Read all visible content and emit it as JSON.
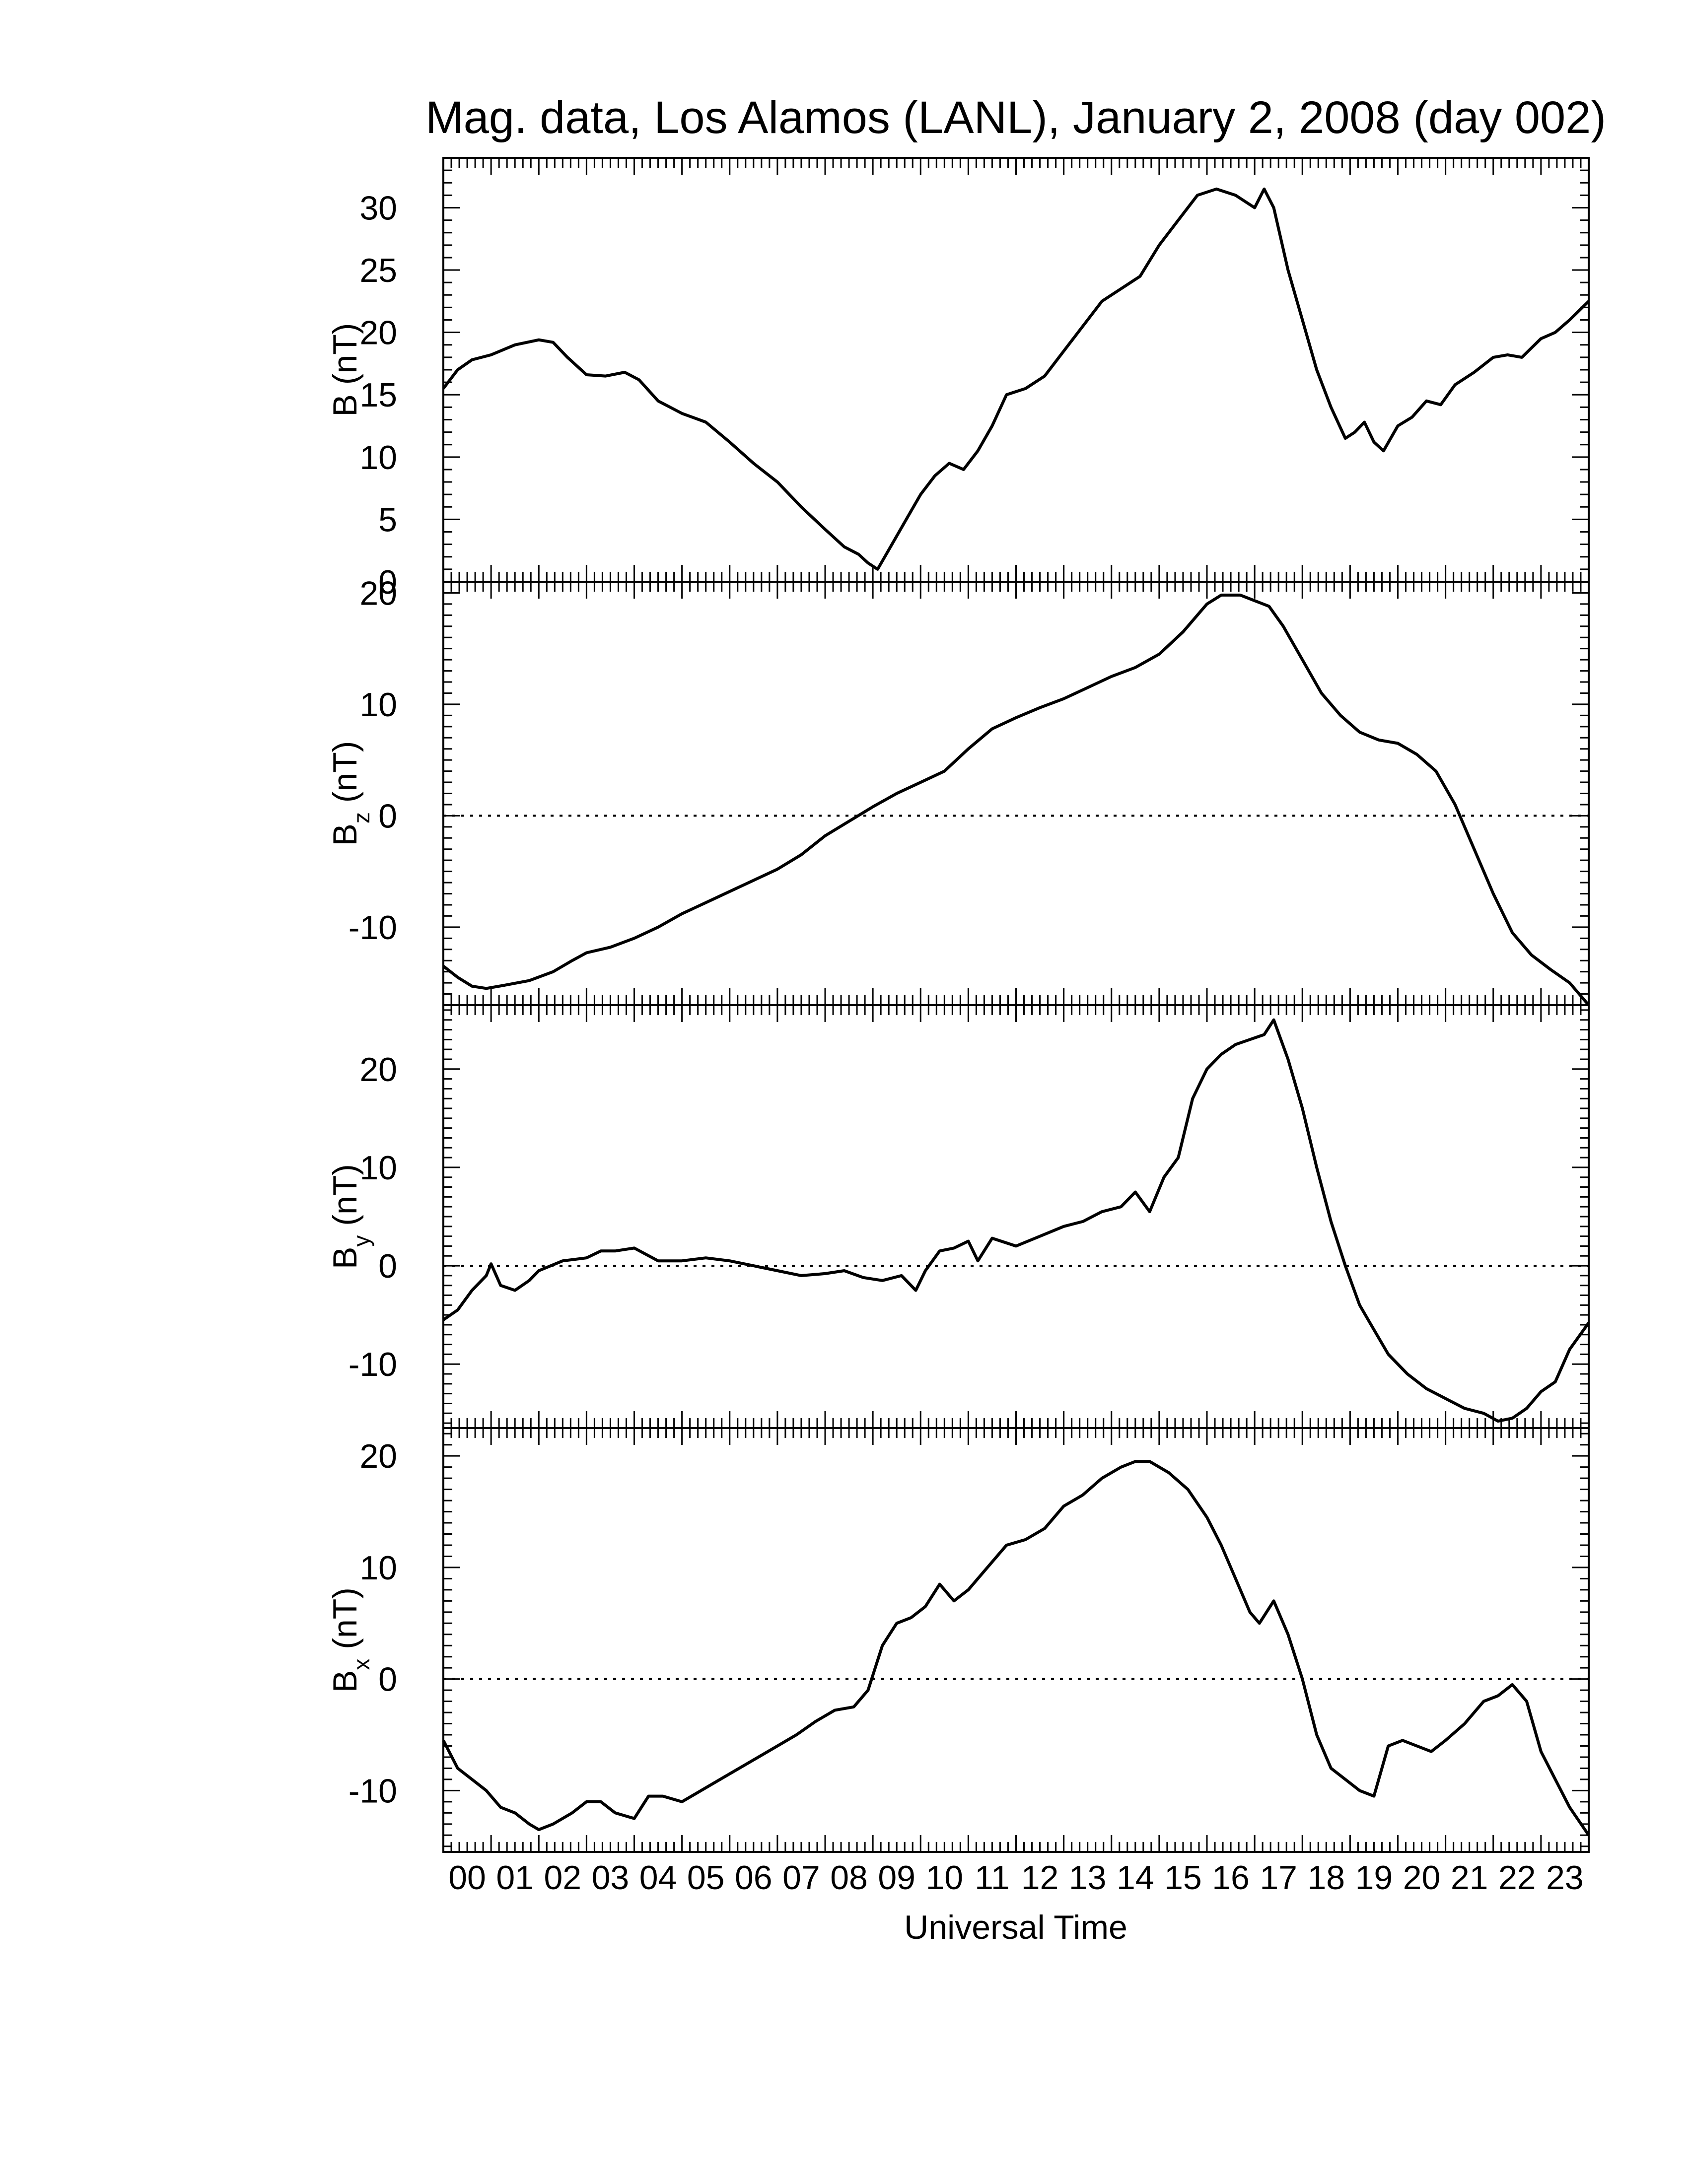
{
  "chart_data": {
    "type": "line",
    "title": "Mag. data, Los Alamos (LANL), January 2, 2008 (day 002)",
    "xlabel": "Universal Time",
    "x_tick_labels": [
      "00",
      "01",
      "02",
      "03",
      "04",
      "05",
      "06",
      "07",
      "08",
      "09",
      "10",
      "11",
      "12",
      "13",
      "14",
      "15",
      "16",
      "17",
      "18",
      "19",
      "20",
      "21",
      "22",
      "23"
    ],
    "xlim": [
      0,
      24
    ],
    "x_unit": "hours UT",
    "panels": [
      {
        "name": "B",
        "ylabel_main": "B",
        "ylabel_sub": "",
        "ylabel_unit": "(nT)",
        "ylim": [
          0,
          34
        ],
        "yticks": [
          0,
          5,
          10,
          15,
          20,
          25,
          30
        ],
        "zero_line": false,
        "series": [
          {
            "x": [
              0,
              0.3,
              0.6,
              1.0,
              1.5,
              2.0,
              2.3,
              2.6,
              3.0,
              3.4,
              3.8,
              4.1,
              4.5,
              5.0,
              5.5,
              6.0,
              6.5,
              7.0,
              7.5,
              8.0,
              8.4,
              8.7,
              8.9,
              9.1,
              9.4,
              9.7,
              10.0,
              10.3,
              10.6,
              10.9,
              11.2,
              11.5,
              11.8,
              12.2,
              12.6,
              13.0,
              13.4,
              13.8,
              14.2,
              14.6,
              15.0,
              15.4,
              15.8,
              16.2,
              16.6,
              17.0,
              17.2,
              17.4,
              17.7,
              18.0,
              18.3,
              18.6,
              18.9,
              19.1,
              19.3,
              19.5,
              19.7,
              20.0,
              20.3,
              20.6,
              20.9,
              21.2,
              21.6,
              22.0,
              22.3,
              22.6,
              23.0,
              23.3,
              23.6,
              24.0
            ],
            "values": [
              15.5,
              17,
              17.8,
              18.2,
              19,
              19.4,
              19.2,
              18,
              16.6,
              16.5,
              16.8,
              16.2,
              14.5,
              13.5,
              12.8,
              11.2,
              9.5,
              8.0,
              6.0,
              4.2,
              2.8,
              2.2,
              1.5,
              1.0,
              3.0,
              5.0,
              7.0,
              8.5,
              9.5,
              9.0,
              10.5,
              12.5,
              15.0,
              15.5,
              16.5,
              18.5,
              20.5,
              22.5,
              23.5,
              24.5,
              27,
              29,
              31,
              31.5,
              31,
              30,
              31.5,
              30,
              25,
              21,
              17,
              14,
              11.5,
              12,
              12.8,
              11.2,
              10.5,
              12.5,
              13.2,
              14.5,
              14.2,
              15.8,
              16.8,
              18,
              18.2,
              18,
              19.5,
              20,
              21,
              22.5
            ]
          }
        ]
      },
      {
        "name": "Bz",
        "ylabel_main": "B",
        "ylabel_sub": "z",
        "ylabel_unit": "(nT)",
        "ylim": [
          -17,
          21
        ],
        "yticks": [
          -10,
          0,
          10,
          20
        ],
        "zero_line": true,
        "series": [
          {
            "x": [
              0,
              0.3,
              0.6,
              0.9,
              1.3,
              1.8,
              2.3,
              2.7,
              3.0,
              3.5,
              4.0,
              4.5,
              5.0,
              5.5,
              6.0,
              6.5,
              7.0,
              7.5,
              8.0,
              8.5,
              9.0,
              9.5,
              10.0,
              10.5,
              11.0,
              11.5,
              12.0,
              12.5,
              13.0,
              13.5,
              14.0,
              14.5,
              15.0,
              15.5,
              16.0,
              16.3,
              16.7,
              17.0,
              17.3,
              17.6,
              18.0,
              18.4,
              18.8,
              19.2,
              19.6,
              20.0,
              20.4,
              20.8,
              21.2,
              21.6,
              22.0,
              22.4,
              22.8,
              23.2,
              23.6,
              24.0
            ],
            "values": [
              -13.5,
              -14.5,
              -15.3,
              -15.5,
              -15.2,
              -14.8,
              -14.0,
              -13.0,
              -12.3,
              -11.8,
              -11.0,
              -10.0,
              -8.8,
              -7.8,
              -6.8,
              -5.8,
              -4.8,
              -3.5,
              -1.8,
              -0.5,
              0.8,
              2.0,
              3.0,
              4.0,
              6.0,
              7.8,
              8.8,
              9.7,
              10.5,
              11.5,
              12.5,
              13.3,
              14.5,
              16.5,
              19.0,
              19.8,
              19.8,
              19.3,
              18.8,
              17.0,
              14.0,
              11.0,
              9.0,
              7.5,
              6.8,
              6.5,
              5.5,
              4.0,
              1.0,
              -3.0,
              -7.0,
              -10.5,
              -12.5,
              -13.8,
              -15.0,
              -17.0
            ]
          }
        ]
      },
      {
        "name": "By",
        "ylabel_main": "B",
        "ylabel_sub": "y",
        "ylabel_unit": "(nT)",
        "ylim": [
          -16.5,
          26.5
        ],
        "yticks": [
          -10,
          0,
          10,
          20
        ],
        "zero_line": true,
        "series": [
          {
            "x": [
              0,
              0.3,
              0.6,
              0.9,
              1.0,
              1.2,
              1.5,
              1.8,
              2.0,
              2.5,
              3.0,
              3.3,
              3.6,
              4.0,
              4.5,
              5.0,
              5.5,
              6.0,
              6.5,
              7.0,
              7.5,
              8.0,
              8.4,
              8.8,
              9.2,
              9.6,
              9.9,
              10.1,
              10.4,
              10.7,
              11.0,
              11.2,
              11.5,
              12.0,
              12.5,
              13.0,
              13.4,
              13.8,
              14.2,
              14.5,
              14.8,
              15.1,
              15.4,
              15.7,
              16.0,
              16.3,
              16.6,
              16.9,
              17.2,
              17.4,
              17.7,
              18.0,
              18.3,
              18.6,
              18.9,
              19.2,
              19.5,
              19.8,
              20.2,
              20.6,
              21.0,
              21.4,
              21.8,
              22.1,
              22.4,
              22.7,
              23.0,
              23.3,
              23.6,
              24.0
            ],
            "values": [
              -5.5,
              -4.5,
              -2.5,
              -1.0,
              0.2,
              -2.0,
              -2.5,
              -1.5,
              -0.5,
              0.5,
              0.8,
              1.5,
              1.5,
              1.8,
              0.5,
              0.5,
              0.8,
              0.5,
              0.0,
              -0.5,
              -1.0,
              -0.8,
              -0.5,
              -1.2,
              -1.5,
              -1.0,
              -2.5,
              -0.5,
              1.5,
              1.8,
              2.5,
              0.5,
              2.8,
              2.0,
              3.0,
              4.0,
              4.5,
              5.5,
              6.0,
              7.5,
              5.5,
              9.0,
              11.0,
              17.0,
              20.0,
              21.5,
              22.5,
              23.0,
              23.5,
              25.0,
              21.0,
              16.0,
              10.0,
              4.5,
              0.0,
              -4.0,
              -6.5,
              -9.0,
              -11.0,
              -12.5,
              -13.5,
              -14.5,
              -15.0,
              -15.8,
              -15.5,
              -14.5,
              -12.8,
              -11.8,
              -8.5,
              -5.8
            ]
          }
        ]
      },
      {
        "name": "Bx",
        "ylabel_main": "B",
        "ylabel_sub": "x",
        "ylabel_unit": "(nT)",
        "ylim": [
          -15.5,
          22.5
        ],
        "yticks": [
          -10,
          0,
          10,
          20
        ],
        "zero_line": true,
        "series": [
          {
            "x": [
              0,
              0.3,
              0.6,
              0.9,
              1.2,
              1.5,
              1.8,
              2.0,
              2.3,
              2.7,
              3.0,
              3.3,
              3.6,
              4.0,
              4.3,
              4.6,
              5.0,
              5.4,
              5.8,
              6.2,
              6.6,
              7.0,
              7.4,
              7.8,
              8.2,
              8.6,
              8.9,
              9.2,
              9.5,
              9.8,
              10.1,
              10.4,
              10.7,
              11.0,
              11.4,
              11.8,
              12.2,
              12.6,
              13.0,
              13.4,
              13.8,
              14.2,
              14.5,
              14.8,
              15.2,
              15.6,
              16.0,
              16.3,
              16.6,
              16.9,
              17.1,
              17.4,
              17.7,
              18.0,
              18.3,
              18.6,
              18.9,
              19.2,
              19.5,
              19.8,
              20.1,
              20.4,
              20.7,
              21.0,
              21.4,
              21.8,
              22.1,
              22.4,
              22.7,
              23.0,
              23.3,
              23.6,
              24.0
            ],
            "values": [
              -5.5,
              -8.0,
              -9.0,
              -10.0,
              -11.5,
              -12.0,
              -13.0,
              -13.5,
              -13.0,
              -12.0,
              -11.0,
              -11.0,
              -12.0,
              -12.5,
              -10.5,
              -10.5,
              -11.0,
              -10.0,
              -9.0,
              -8.0,
              -7.0,
              -6.0,
              -5.0,
              -3.8,
              -2.8,
              -2.5,
              -1.0,
              3.0,
              5.0,
              5.5,
              6.5,
              8.5,
              7.0,
              8.0,
              10.0,
              12.0,
              12.5,
              13.5,
              15.5,
              16.5,
              18.0,
              19.0,
              19.5,
              19.5,
              18.5,
              17.0,
              14.5,
              12.0,
              9.0,
              6.0,
              5.0,
              7.0,
              4.0,
              0.0,
              -5.0,
              -8.0,
              -9.0,
              -10.0,
              -10.5,
              -6.0,
              -5.5,
              -6.0,
              -6.5,
              -5.5,
              -4.0,
              -2.0,
              -1.5,
              -0.5,
              -2.0,
              -6.5,
              -9.0,
              -11.5,
              -14.0
            ]
          }
        ]
      }
    ]
  }
}
